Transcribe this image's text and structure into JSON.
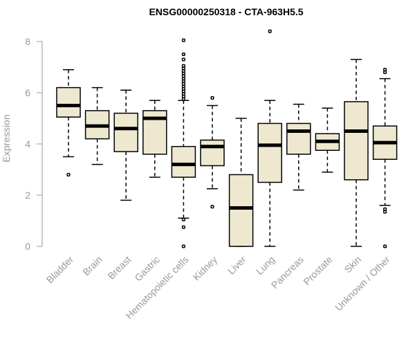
{
  "chart_data": {
    "type": "boxplot",
    "title": "ENSG00000250318 - CTA-963H5.5",
    "ylabel": "Expression",
    "ylim": [
      0,
      8.5
    ],
    "yticks": [
      0,
      2,
      4,
      6,
      8
    ],
    "box_color": "#efe8d0",
    "categories": [
      "Bladder",
      "Brain",
      "Breast",
      "Gastric",
      "Hematopoietic cells",
      "Kidney",
      "Liver",
      "Lung",
      "Pancreas",
      "Prostate",
      "Skin",
      "Unknown / Other"
    ],
    "boxes": [
      {
        "name": "Bladder",
        "whisker_low": 3.5,
        "q1": 5.05,
        "median": 5.5,
        "q3": 6.2,
        "whisker_high": 6.9,
        "outliers": [
          2.8
        ]
      },
      {
        "name": "Brain",
        "whisker_low": 3.2,
        "q1": 4.2,
        "median": 4.7,
        "q3": 5.3,
        "whisker_high": 6.2,
        "outliers": []
      },
      {
        "name": "Breast",
        "whisker_low": 1.8,
        "q1": 3.7,
        "median": 4.6,
        "q3": 5.2,
        "whisker_high": 6.1,
        "outliers": []
      },
      {
        "name": "Gastric",
        "whisker_low": 2.7,
        "q1": 3.6,
        "median": 5.0,
        "q3": 5.3,
        "whisker_high": 5.7,
        "outliers": []
      },
      {
        "name": "Hematopoietic cells",
        "whisker_low": 1.1,
        "q1": 2.7,
        "median": 3.2,
        "q3": 3.9,
        "whisker_high": 5.7,
        "outliers": [
          0.0,
          0.75,
          1.05,
          5.75,
          5.85,
          5.95,
          6.05,
          6.15,
          6.25,
          6.35,
          6.45,
          6.55,
          6.65,
          6.75,
          6.85,
          6.95,
          7.05,
          7.3,
          7.5,
          8.05
        ]
      },
      {
        "name": "Kidney",
        "whisker_low": 2.25,
        "q1": 3.15,
        "median": 3.9,
        "q3": 4.15,
        "whisker_high": 5.5,
        "outliers": [
          1.55,
          5.8
        ]
      },
      {
        "name": "Liver",
        "whisker_low": 0.0,
        "q1": 0.0,
        "median": 1.5,
        "q3": 2.8,
        "whisker_high": 5.0,
        "outliers": []
      },
      {
        "name": "Lung",
        "whisker_low": 0.0,
        "q1": 2.5,
        "median": 3.95,
        "q3": 4.8,
        "whisker_high": 5.7,
        "outliers": [
          8.4
        ]
      },
      {
        "name": "Pancreas",
        "whisker_low": 2.2,
        "q1": 3.6,
        "median": 4.5,
        "q3": 4.8,
        "whisker_high": 5.55,
        "outliers": []
      },
      {
        "name": "Prostate",
        "whisker_low": 2.9,
        "q1": 3.75,
        "median": 4.1,
        "q3": 4.4,
        "whisker_high": 5.4,
        "outliers": []
      },
      {
        "name": "Skin",
        "whisker_low": 0.0,
        "q1": 2.6,
        "median": 4.5,
        "q3": 5.65,
        "whisker_high": 7.3,
        "outliers": []
      },
      {
        "name": "Unknown / Other",
        "whisker_low": 1.6,
        "q1": 3.4,
        "median": 4.05,
        "q3": 4.7,
        "whisker_high": 6.55,
        "outliers": [
          0.0,
          1.35,
          1.45,
          6.8,
          6.9
        ]
      }
    ]
  }
}
